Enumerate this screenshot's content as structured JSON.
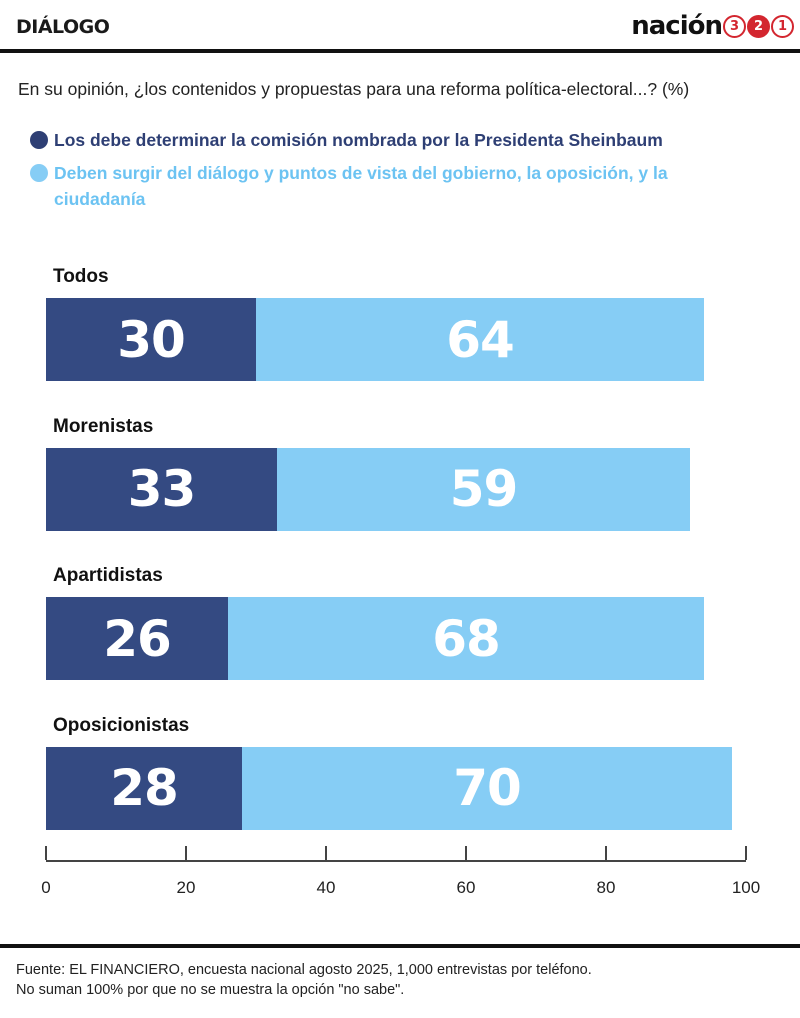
{
  "header": {
    "section": "DIÁLOGO",
    "brand_word": "nación",
    "brand_digits": [
      "3",
      "2",
      "1"
    ]
  },
  "question": "En su opinión, ¿los contenidos y propuestas para una reforma política-electoral...? (%)",
  "footer": {
    "line1": "Fuente: EL FINANCIERO, encuesta nacional agosto 2025, 1,000 entrevistas por teléfono.",
    "line2": "No suman 100% por que no se muestra la opción \"no sabe\"."
  },
  "colors": {
    "dark": "#344a82",
    "light": "#86cdf5",
    "brand_red": "#d3262f"
  },
  "chart_data": {
    "type": "bar",
    "orientation": "horizontal",
    "stacked": true,
    "categories": [
      "Todos",
      "Morenistas",
      "Apartidistas",
      "Oposicionistas"
    ],
    "series": [
      {
        "name": "Los debe determinar la comisión nombrada por la Presidenta Sheinbaum",
        "color": "#344a82",
        "values": [
          30,
          33,
          26,
          28
        ]
      },
      {
        "name": "Deben surgir del diálogo y puntos de vista del gobierno, la oposición, y la ciudadanía",
        "color": "#86cdf5",
        "values": [
          64,
          59,
          68,
          70
        ]
      }
    ],
    "xlim": [
      0,
      100
    ],
    "xticks": [
      0,
      20,
      40,
      60,
      80,
      100
    ],
    "legend": "top",
    "grid": false
  }
}
